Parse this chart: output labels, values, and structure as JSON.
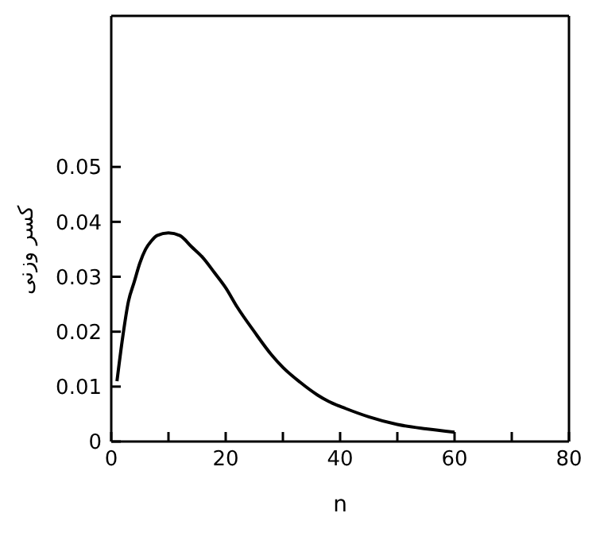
{
  "chart_data": {
    "type": "line",
    "xlabel": "n",
    "ylabel": "کسر وزنی",
    "x": [
      1,
      2,
      3,
      4,
      5,
      6,
      7,
      8,
      10,
      12,
      14,
      16,
      18,
      20,
      22,
      25,
      28,
      30,
      33,
      36,
      38,
      41,
      45,
      50,
      55,
      60
    ],
    "series": [
      {
        "color": "#000000",
        "values": [
          0.011,
          0.019,
          0.0255,
          0.029,
          0.0325,
          0.035,
          0.0365,
          0.0375,
          0.038,
          0.0375,
          0.0355,
          0.0335,
          0.0308,
          0.028,
          0.0245,
          0.02,
          0.0158,
          0.0135,
          0.0108,
          0.0085,
          0.0073,
          0.006,
          0.0045,
          0.0031,
          0.0023,
          0.0017
        ]
      }
    ],
    "xlim": [
      0,
      80
    ],
    "ylim": [
      0,
      0.0775
    ],
    "xticks": [
      0,
      {
        "value": 10,
        "label": null
      },
      20,
      {
        "value": 30,
        "label": null
      },
      40,
      {
        "value": 50,
        "label": null
      },
      60,
      {
        "value": 70,
        "label": null
      },
      80
    ],
    "yticks": [
      0,
      0.01,
      0.02,
      0.03,
      0.04,
      0.05
    ],
    "grid": false,
    "marker": "none",
    "line_style": "solid"
  }
}
